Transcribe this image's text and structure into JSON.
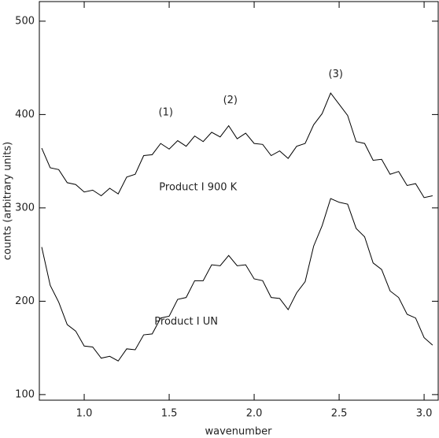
{
  "chart_data": {
    "type": "line",
    "xlabel": "wavenumber",
    "ylabel": "counts (arbitrary units)",
    "xlim": [
      0.736,
      3.083
    ],
    "ylim": [
      94,
      521
    ],
    "xticks": [
      {
        "value": 1.0,
        "label": "1.0"
      },
      {
        "value": 1.5,
        "label": "1.5"
      },
      {
        "value": 2.0,
        "label": "2.0"
      },
      {
        "value": 2.5,
        "label": "2.5"
      },
      {
        "value": 3.0,
        "label": "3.0"
      }
    ],
    "yticks": [
      100,
      200,
      300,
      400,
      500
    ],
    "x": [
      0.75,
      0.8,
      0.85,
      0.9,
      0.95,
      1.0,
      1.05,
      1.1,
      1.15,
      1.2,
      1.25,
      1.3,
      1.35,
      1.4,
      1.45,
      1.5,
      1.55,
      1.6,
      1.65,
      1.7,
      1.75,
      1.8,
      1.85,
      1.9,
      1.95,
      2.0,
      2.05,
      2.1,
      2.15,
      2.2,
      2.25,
      2.3,
      2.35,
      2.4,
      2.45,
      2.5,
      2.55,
      2.6,
      2.65,
      2.7,
      2.75,
      2.8,
      2.85,
      2.9,
      2.95,
      3.0,
      3.05
    ],
    "series": [
      {
        "name": "Product I 900 K",
        "color": "#000000",
        "values": [
          364,
          343,
          341,
          327,
          325,
          317,
          319,
          313,
          321,
          315,
          333,
          336,
          356,
          357,
          369,
          363,
          372,
          366,
          377,
          371,
          381,
          376,
          388,
          374,
          380,
          369,
          368,
          356,
          361,
          353,
          366,
          369,
          389,
          401,
          423,
          411,
          399,
          371,
          369,
          351,
          352,
          336,
          339,
          324,
          326,
          311,
          313
        ]
      },
      {
        "name": "Product I UN",
        "color": "#000000",
        "values": [
          258,
          217,
          199,
          175,
          168,
          152,
          151,
          139,
          141,
          136,
          149,
          148,
          164,
          165,
          182,
          184,
          202,
          204,
          222,
          222,
          239,
          238,
          249,
          238,
          239,
          224,
          222,
          204,
          203,
          191,
          209,
          221,
          259,
          281,
          310,
          306,
          304,
          278,
          269,
          241,
          234,
          211,
          204,
          186,
          182,
          161,
          153
        ]
      }
    ],
    "annotations": [
      {
        "text": "(1)",
        "x": 1.48,
        "y": 402
      },
      {
        "text": "(2)",
        "x": 1.86,
        "y": 415
      },
      {
        "text": "(3)",
        "x": 2.48,
        "y": 443
      },
      {
        "text": "Product I 900 K",
        "x": 1.67,
        "y": 322
      },
      {
        "text": "Product I UN",
        "x": 1.6,
        "y": 178
      }
    ]
  }
}
